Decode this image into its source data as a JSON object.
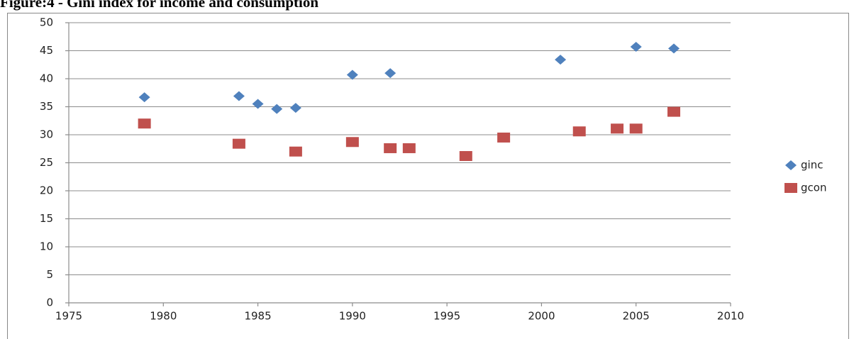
{
  "chart_data": {
    "type": "scatter",
    "title": "Figure:4 - Gini index for income and consumption",
    "xlim": [
      1975,
      2010
    ],
    "xticks": [
      1975,
      1980,
      1985,
      1990,
      1995,
      2000,
      2005,
      2010
    ],
    "ylim": [
      0,
      50
    ],
    "yticks": [
      0,
      5,
      10,
      15,
      20,
      25,
      30,
      35,
      40,
      45,
      50
    ],
    "grid": true,
    "legend": "right",
    "series": [
      {
        "name": "ginc",
        "color": "#4f81bd",
        "marker": "diamond",
        "x": [
          1979,
          1984,
          1985,
          1986,
          1987,
          1990,
          1992,
          2001,
          2005,
          2007
        ],
        "values": [
          36.7,
          36.9,
          35.5,
          34.6,
          34.8,
          40.7,
          41.0,
          43.4,
          45.7,
          45.4
        ]
      },
      {
        "name": "gcon",
        "color": "#c0504d",
        "marker": "square",
        "x": [
          1979,
          1984,
          1987,
          1990,
          1992,
          1993,
          1996,
          1998,
          2002,
          2004,
          2005,
          2007
        ],
        "values": [
          32.0,
          28.4,
          27.0,
          28.7,
          27.6,
          27.6,
          26.2,
          29.5,
          30.6,
          31.1,
          31.1,
          34.1
        ]
      }
    ]
  }
}
